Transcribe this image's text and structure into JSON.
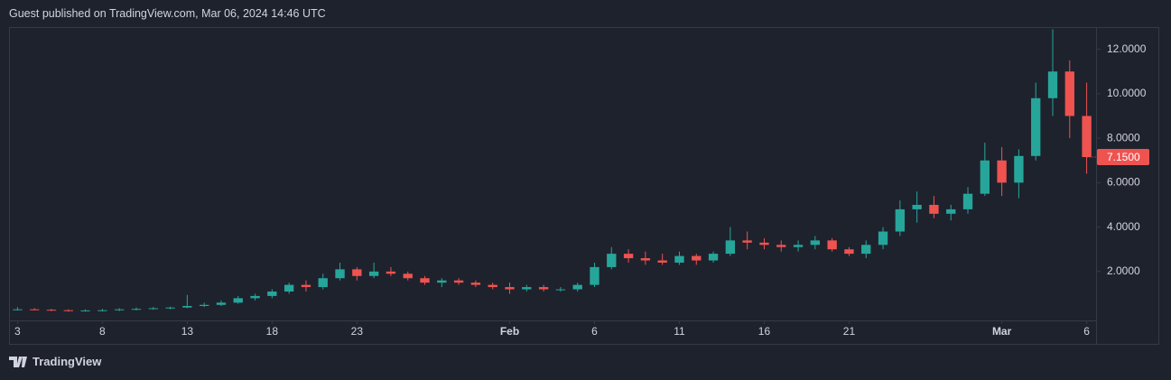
{
  "header": {
    "title": "Guest published on TradingView.com, Mar 06, 2024 14:46 UTC"
  },
  "footer": {
    "brand": "TradingView"
  },
  "chart_data": {
    "type": "candlestick",
    "up_color": "#26a69a",
    "down_color": "#ef5350",
    "x": [
      0,
      1,
      2,
      3,
      4,
      5,
      6,
      7,
      8,
      9,
      10,
      11,
      12,
      13,
      14,
      15,
      16,
      17,
      18,
      19,
      20,
      21,
      22,
      23,
      24,
      25,
      26,
      27,
      28,
      29,
      30,
      31,
      32,
      33,
      34,
      35,
      36,
      37,
      38,
      39,
      40,
      41,
      42,
      43,
      44,
      45,
      46,
      47,
      48,
      49,
      50,
      51,
      52,
      53,
      54,
      55,
      56,
      57,
      58,
      59,
      60,
      61,
      62,
      63
    ],
    "open": [
      0.3,
      0.3,
      0.28,
      0.26,
      0.24,
      0.25,
      0.26,
      0.3,
      0.32,
      0.35,
      0.38,
      0.45,
      0.5,
      0.6,
      0.8,
      0.9,
      1.1,
      1.4,
      1.3,
      1.7,
      2.1,
      1.8,
      2.0,
      1.9,
      1.7,
      1.5,
      1.6,
      1.5,
      1.4,
      1.3,
      1.2,
      1.3,
      1.2,
      1.2,
      1.4,
      2.2,
      2.8,
      2.6,
      2.5,
      2.4,
      2.7,
      2.5,
      2.8,
      3.4,
      3.3,
      3.2,
      3.1,
      3.2,
      3.4,
      3.0,
      2.8,
      3.2,
      3.8,
      4.8,
      5.0,
      4.6,
      4.8,
      5.5,
      7.0,
      6.0,
      7.2,
      9.8,
      11.0,
      9.0
    ],
    "high": [
      0.4,
      0.35,
      0.32,
      0.3,
      0.3,
      0.32,
      0.35,
      0.38,
      0.4,
      0.42,
      0.95,
      0.6,
      0.7,
      0.9,
      1.0,
      1.2,
      1.5,
      1.6,
      1.9,
      2.4,
      2.2,
      2.4,
      2.2,
      2.0,
      1.8,
      1.7,
      1.7,
      1.6,
      1.5,
      1.5,
      1.4,
      1.4,
      1.3,
      1.5,
      2.4,
      3.1,
      3.0,
      2.9,
      2.8,
      2.9,
      2.8,
      2.9,
      4.0,
      3.8,
      3.5,
      3.4,
      3.4,
      3.6,
      3.5,
      3.1,
      3.4,
      4.0,
      5.2,
      5.6,
      5.4,
      5.0,
      5.8,
      7.8,
      7.6,
      7.5,
      10.5,
      12.9,
      11.5,
      10.5
    ],
    "low": [
      0.25,
      0.25,
      0.22,
      0.2,
      0.2,
      0.2,
      0.22,
      0.25,
      0.28,
      0.3,
      0.35,
      0.4,
      0.45,
      0.55,
      0.7,
      0.8,
      1.0,
      1.1,
      1.2,
      1.6,
      1.6,
      1.7,
      1.8,
      1.6,
      1.4,
      1.3,
      1.4,
      1.3,
      1.2,
      1.0,
      1.1,
      1.1,
      1.1,
      1.1,
      1.3,
      2.1,
      2.4,
      2.3,
      2.3,
      2.3,
      2.3,
      2.4,
      2.7,
      3.0,
      3.0,
      2.9,
      2.9,
      3.0,
      2.9,
      2.7,
      2.6,
      3.0,
      3.6,
      4.2,
      4.4,
      4.3,
      4.6,
      5.4,
      5.4,
      5.3,
      7.0,
      9.0,
      8.0,
      6.4
    ],
    "close": [
      0.3,
      0.28,
      0.26,
      0.24,
      0.25,
      0.26,
      0.3,
      0.32,
      0.35,
      0.38,
      0.45,
      0.5,
      0.6,
      0.8,
      0.9,
      1.1,
      1.4,
      1.3,
      1.7,
      2.1,
      1.8,
      2.0,
      1.9,
      1.7,
      1.5,
      1.6,
      1.5,
      1.4,
      1.3,
      1.2,
      1.3,
      1.2,
      1.2,
      1.4,
      2.2,
      2.8,
      2.6,
      2.5,
      2.4,
      2.7,
      2.5,
      2.8,
      3.4,
      3.3,
      3.2,
      3.1,
      3.2,
      3.4,
      3.0,
      2.8,
      3.2,
      3.8,
      4.8,
      5.0,
      4.6,
      4.8,
      5.5,
      7.0,
      6.0,
      7.2,
      9.8,
      11.0,
      9.0,
      7.15
    ],
    "last_price": {
      "value": 7.15,
      "label": "7.1500"
    },
    "xlim": [
      -0.5,
      63.5
    ],
    "xticks": [
      {
        "value": 0,
        "label": "3"
      },
      {
        "value": 5,
        "label": "8"
      },
      {
        "value": 10,
        "label": "13"
      },
      {
        "value": 15,
        "label": "18"
      },
      {
        "value": 20,
        "label": "23"
      },
      {
        "value": 29,
        "label": "Feb"
      },
      {
        "value": 34,
        "label": "6"
      },
      {
        "value": 39,
        "label": "11"
      },
      {
        "value": 44,
        "label": "16"
      },
      {
        "value": 49,
        "label": "21"
      },
      {
        "value": 58,
        "label": "Mar"
      },
      {
        "value": 63,
        "label": "6"
      }
    ],
    "ylim": [
      -0.2,
      13.0
    ],
    "yticks": [
      {
        "value": 2,
        "label": "2.0000"
      },
      {
        "value": 4,
        "label": "4.0000"
      },
      {
        "value": 6,
        "label": "6.0000"
      },
      {
        "value": 8,
        "label": "8.0000"
      },
      {
        "value": 10,
        "label": "10.0000"
      },
      {
        "value": 12,
        "label": "12.0000"
      }
    ]
  }
}
